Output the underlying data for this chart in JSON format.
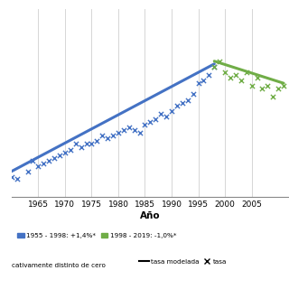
{
  "title": "",
  "xlabel": "Año",
  "ylabel": "",
  "xlim": [
    1960,
    2012
  ],
  "ylim": [
    4,
    38
  ],
  "xticks": [
    1965,
    1970,
    1975,
    1980,
    1985,
    1990,
    1995,
    2000,
    2005
  ],
  "background_color": "#ffffff",
  "grid_color": "#d0d0d0",
  "blue_segment_label": "1955 - 1998: +1,4%*",
  "green_segment_label": "1998 - 2019: -1,0%*",
  "line_label": "tasa modelada",
  "scatter_label": "tasa",
  "footnote": "cativamente distinto de cero",
  "blue_color": "#4472c4",
  "green_color": "#70ad47",
  "black_color": "#000000",
  "blue_scatter_x": [
    1960,
    1961,
    1963,
    1964,
    1965,
    1966,
    1967,
    1968,
    1969,
    1970,
    1971,
    1972,
    1973,
    1974,
    1975,
    1976,
    1977,
    1978,
    1979,
    1980,
    1981,
    1982,
    1983,
    1984,
    1985,
    1986,
    1987,
    1988,
    1989,
    1990,
    1991,
    1992,
    1993,
    1994,
    1995,
    1996,
    1997,
    1998
  ],
  "blue_scatter_y": [
    7.5,
    7.2,
    8.5,
    10.5,
    9.5,
    10.0,
    10.5,
    11.0,
    11.5,
    12.0,
    12.5,
    13.5,
    13.0,
    13.5,
    13.5,
    14.0,
    15.0,
    14.5,
    15.0,
    15.5,
    16.0,
    16.5,
    16.0,
    15.5,
    17.0,
    17.5,
    18.0,
    19.0,
    18.5,
    19.5,
    20.5,
    21.0,
    21.5,
    22.5,
    24.5,
    25.0,
    26.0,
    27.5
  ],
  "blue_line_x": [
    1955,
    1998
  ],
  "blue_line_y": [
    6.0,
    28.0
  ],
  "green_scatter_x": [
    1998,
    1999,
    2000,
    2001,
    2002,
    2003,
    2004,
    2005,
    2006,
    2007,
    2008,
    2009,
    2010,
    2011
  ],
  "green_scatter_y": [
    27.5,
    28.5,
    26.5,
    25.5,
    26.0,
    25.0,
    26.5,
    24.0,
    25.5,
    23.5,
    24.0,
    22.0,
    23.5,
    24.0
  ],
  "green_line_x": [
    1998,
    2011
  ],
  "green_line_y": [
    28.5,
    24.5
  ]
}
